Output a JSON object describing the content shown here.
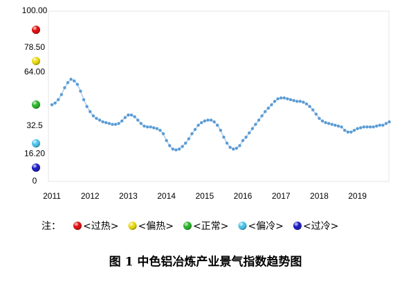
{
  "chart_data": {
    "type": "line",
    "categories": [
      "2011",
      null,
      null,
      null,
      null,
      null,
      null,
      null,
      null,
      null,
      null,
      null,
      "2012",
      null,
      null,
      null,
      null,
      null,
      null,
      null,
      null,
      null,
      null,
      null,
      "2013",
      null,
      null,
      null,
      null,
      null,
      null,
      null,
      null,
      null,
      null,
      null,
      "2014",
      null,
      null,
      null,
      null,
      null,
      null,
      null,
      null,
      null,
      null,
      null,
      "2015",
      null,
      null,
      null,
      null,
      null,
      null,
      null,
      null,
      null,
      null,
      null,
      "2016",
      null,
      null,
      null,
      null,
      null,
      null,
      null,
      null,
      null,
      null,
      null,
      "2017",
      null,
      null,
      null,
      null,
      null,
      null,
      null,
      null,
      null,
      null,
      null,
      "2018",
      null,
      null,
      null,
      null,
      null,
      null,
      null,
      null,
      null,
      null,
      null,
      "2019",
      null,
      null,
      null,
      null,
      null,
      null,
      null,
      null,
      null,
      null
    ],
    "series": [
      {
        "color": "#5b9bd5",
        "values": [
          45,
          46,
          48,
          51,
          55,
          58,
          60,
          59,
          57,
          53,
          48,
          44,
          41,
          38.5,
          37,
          36,
          35,
          34.5,
          34,
          33.5,
          33.5,
          34,
          35.5,
          37.5,
          39,
          39,
          38,
          36,
          34,
          32.5,
          32,
          32,
          31.5,
          31,
          30,
          28,
          24,
          21,
          19,
          18.5,
          19,
          20.5,
          22.5,
          25,
          28,
          30.5,
          33,
          34.5,
          35.5,
          36,
          36,
          35,
          33,
          30,
          26,
          22.5,
          20,
          19,
          19.5,
          21,
          24,
          26,
          28.5,
          31,
          33.5,
          36,
          38.5,
          41,
          43,
          45,
          47,
          48.5,
          49,
          49,
          48.5,
          48,
          47.5,
          47,
          47,
          46.5,
          45.5,
          44,
          42,
          39.5,
          37,
          35.5,
          34.5,
          34,
          33.5,
          33,
          32.5,
          32,
          30,
          29,
          29,
          30,
          31,
          31.5,
          32,
          32,
          32,
          32,
          32.5,
          33,
          33,
          34,
          35
        ]
      }
    ],
    "ylim": [
      0,
      100
    ],
    "yticks": [
      0,
      {
        "value": 16.2,
        "label": "16.20"
      },
      32.5,
      {
        "value": 64,
        "label": "64.00"
      },
      {
        "value": 78.5,
        "label": "78.50"
      },
      {
        "value": 100,
        "label": "100.00"
      }
    ],
    "zones": [
      {
        "name": "<过热>",
        "color": "#e00000"
      },
      {
        "name": "<偏热>",
        "color": "#e8d800"
      },
      {
        "name": "<正常>",
        "color": "#20b020"
      },
      {
        "name": "<偏冷>",
        "color": "#40c0e8"
      },
      {
        "name": "<过冷>",
        "color": "#1010c0"
      }
    ],
    "note": "注：",
    "caption": "图 1  中色铝冶炼产业景气指数趋势图"
  }
}
